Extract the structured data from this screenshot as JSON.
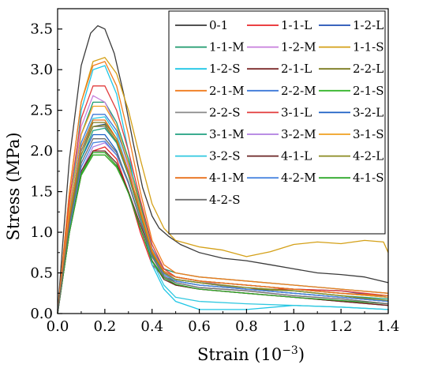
{
  "chart_data": {
    "type": "line",
    "xlabel": "Strain (10",
    "xlabel_sup": "−3",
    "xlabel_tail": ")",
    "ylabel": "Stress (MPa)",
    "xlim": [
      0.0,
      1.4
    ],
    "ylim": [
      0.0,
      3.75
    ],
    "x_ticks": [
      "0.0",
      "0.2",
      "0.4",
      "0.6",
      "0.8",
      "1.0",
      "1.2",
      "1.4"
    ],
    "y_ticks": [
      "0.0",
      "0.5",
      "1.0",
      "1.5",
      "2.0",
      "2.5",
      "3.0",
      "3.5"
    ],
    "grid": false,
    "legend_position": "top-right",
    "legend_columns": 3,
    "series": [
      {
        "name": "0-1",
        "color": "#3a3a3a",
        "x": [
          0,
          0.02,
          0.05,
          0.1,
          0.14,
          0.17,
          0.2,
          0.24,
          0.28,
          0.32,
          0.36,
          0.4,
          0.43,
          0.47,
          0.52,
          0.6,
          0.7,
          0.8,
          0.9,
          1.0,
          1.1,
          1.2,
          1.3,
          1.4
        ],
        "y": [
          0,
          0.8,
          1.9,
          3.05,
          3.45,
          3.54,
          3.5,
          3.2,
          2.7,
          2.1,
          1.55,
          1.2,
          1.05,
          0.95,
          0.85,
          0.75,
          0.68,
          0.65,
          0.6,
          0.55,
          0.5,
          0.48,
          0.45,
          0.38
        ]
      },
      {
        "name": "1-1-L",
        "color": "#e8262a",
        "x": [
          0,
          0.05,
          0.1,
          0.15,
          0.2,
          0.25,
          0.3,
          0.35,
          0.4,
          0.45,
          0.5,
          0.6,
          0.8,
          1.0,
          1.2,
          1.4
        ],
        "y": [
          0,
          1.0,
          1.7,
          2.0,
          2.05,
          1.9,
          1.5,
          1.0,
          0.6,
          0.45,
          0.4,
          0.35,
          0.3,
          0.3,
          0.25,
          0.2
        ]
      },
      {
        "name": "1-2-L",
        "color": "#1f4fb4",
        "x": [
          0,
          0.05,
          0.1,
          0.15,
          0.2,
          0.25,
          0.3,
          0.35,
          0.4,
          0.45,
          0.5,
          0.6,
          0.8,
          1.0,
          1.2,
          1.4
        ],
        "y": [
          0,
          1.2,
          2.0,
          2.3,
          2.33,
          2.1,
          1.7,
          1.2,
          0.7,
          0.5,
          0.45,
          0.4,
          0.35,
          0.3,
          0.28,
          0.2
        ]
      },
      {
        "name": "1-1-M",
        "color": "#1e9a6e",
        "x": [
          0,
          0.05,
          0.1,
          0.15,
          0.2,
          0.25,
          0.3,
          0.35,
          0.4,
          0.45,
          0.5,
          0.6,
          0.8,
          1.0,
          1.2,
          1.4
        ],
        "y": [
          0,
          1.3,
          2.2,
          2.6,
          2.6,
          2.35,
          1.9,
          1.35,
          0.8,
          0.55,
          0.5,
          0.45,
          0.4,
          0.35,
          0.3,
          0.25
        ]
      },
      {
        "name": "1-2-M",
        "color": "#c77fdc",
        "x": [
          0,
          0.05,
          0.1,
          0.15,
          0.2,
          0.25,
          0.3,
          0.35,
          0.4,
          0.45,
          0.5,
          0.6,
          0.8,
          1.0,
          1.2,
          1.4
        ],
        "y": [
          0,
          1.3,
          2.3,
          2.68,
          2.6,
          2.3,
          1.8,
          1.2,
          0.7,
          0.5,
          0.45,
          0.4,
          0.3,
          0.25,
          0.2,
          0.15
        ]
      },
      {
        "name": "1-1-S",
        "color": "#d4a017",
        "x": [
          0,
          0.05,
          0.1,
          0.15,
          0.2,
          0.25,
          0.3,
          0.35,
          0.4,
          0.45,
          0.5,
          0.6,
          0.7,
          0.8,
          0.9,
          1.0,
          1.1,
          1.2,
          1.3,
          1.38,
          1.4
        ],
        "y": [
          0,
          1.5,
          2.6,
          3.1,
          3.15,
          2.95,
          2.5,
          1.9,
          1.35,
          1.05,
          0.9,
          0.82,
          0.78,
          0.7,
          0.76,
          0.85,
          0.88,
          0.86,
          0.9,
          0.88,
          0.75
        ]
      },
      {
        "name": "1-2-S",
        "color": "#1ec6e6",
        "x": [
          0,
          0.05,
          0.1,
          0.15,
          0.2,
          0.25,
          0.3,
          0.35,
          0.4,
          0.45,
          0.5,
          0.6,
          0.8,
          1.0,
          1.2,
          1.4
        ],
        "y": [
          0,
          1.2,
          2.5,
          3.0,
          3.05,
          2.7,
          2.0,
          1.2,
          0.6,
          0.3,
          0.15,
          0.05,
          0.05,
          0.1,
          0.08,
          0.05
        ]
      },
      {
        "name": "2-1-L",
        "color": "#7b2a2a",
        "x": [
          0,
          0.05,
          0.1,
          0.15,
          0.2,
          0.25,
          0.3,
          0.35,
          0.4,
          0.45,
          0.5,
          0.6,
          0.8,
          1.0,
          1.2,
          1.4
        ],
        "y": [
          0,
          1.0,
          1.7,
          1.95,
          1.95,
          1.8,
          1.5,
          1.1,
          0.7,
          0.45,
          0.35,
          0.3,
          0.25,
          0.2,
          0.15,
          0.1
        ]
      },
      {
        "name": "2-2-L",
        "color": "#7a7a1e",
        "x": [
          0,
          0.05,
          0.1,
          0.15,
          0.2,
          0.25,
          0.3,
          0.35,
          0.4,
          0.45,
          0.5,
          0.6,
          0.8,
          1.0,
          1.2,
          1.4
        ],
        "y": [
          0,
          1.2,
          2.0,
          2.35,
          2.35,
          2.15,
          1.75,
          1.25,
          0.75,
          0.5,
          0.42,
          0.38,
          0.3,
          0.28,
          0.22,
          0.15
        ]
      },
      {
        "name": "2-1-M",
        "color": "#f07c1e",
        "x": [
          0,
          0.05,
          0.1,
          0.15,
          0.2,
          0.25,
          0.3,
          0.35,
          0.4,
          0.45,
          0.5,
          0.6,
          0.8,
          1.0,
          1.2,
          1.4
        ],
        "y": [
          0,
          1.5,
          2.6,
          3.05,
          3.1,
          2.8,
          2.2,
          1.5,
          0.9,
          0.6,
          0.5,
          0.45,
          0.4,
          0.35,
          0.3,
          0.25
        ]
      },
      {
        "name": "2-2-M",
        "color": "#3c78d8",
        "x": [
          0,
          0.05,
          0.1,
          0.15,
          0.2,
          0.25,
          0.3,
          0.35,
          0.4,
          0.45,
          0.5,
          0.6,
          0.8,
          1.0,
          1.2,
          1.4
        ],
        "y": [
          0,
          1.2,
          2.1,
          2.45,
          2.45,
          2.25,
          1.85,
          1.3,
          0.8,
          0.55,
          0.45,
          0.4,
          0.35,
          0.3,
          0.25,
          0.2
        ]
      },
      {
        "name": "2-1-S",
        "color": "#36b62c",
        "x": [
          0,
          0.05,
          0.1,
          0.15,
          0.2,
          0.25,
          0.3,
          0.35,
          0.4,
          0.45,
          0.5,
          0.6,
          0.8,
          1.0,
          1.2,
          1.4
        ],
        "y": [
          0,
          1.0,
          1.7,
          1.95,
          1.95,
          1.8,
          1.5,
          1.05,
          0.65,
          0.45,
          0.4,
          0.35,
          0.3,
          0.25,
          0.2,
          0.15
        ]
      },
      {
        "name": "2-2-S",
        "color": "#8a8a8a",
        "x": [
          0,
          0.05,
          0.1,
          0.15,
          0.2,
          0.25,
          0.3,
          0.35,
          0.4,
          0.45,
          0.5,
          0.6,
          0.8,
          1.0,
          1.2,
          1.4
        ],
        "y": [
          0,
          1.2,
          2.0,
          2.3,
          2.3,
          2.1,
          1.7,
          1.2,
          0.75,
          0.5,
          0.42,
          0.38,
          0.3,
          0.25,
          0.2,
          0.15
        ]
      },
      {
        "name": "3-1-L",
        "color": "#e23c3c",
        "x": [
          0,
          0.05,
          0.1,
          0.15,
          0.2,
          0.25,
          0.3,
          0.35,
          0.4,
          0.45,
          0.5,
          0.6,
          0.8,
          1.0,
          1.2,
          1.4
        ],
        "y": [
          0,
          1.4,
          2.4,
          2.8,
          2.8,
          2.5,
          2.0,
          1.4,
          0.85,
          0.55,
          0.45,
          0.4,
          0.35,
          0.3,
          0.28,
          0.22
        ]
      },
      {
        "name": "3-2-L",
        "color": "#1a5fc4",
        "x": [
          0,
          0.05,
          0.1,
          0.15,
          0.2,
          0.25,
          0.3,
          0.35,
          0.4,
          0.45,
          0.5,
          0.6,
          0.8,
          1.0,
          1.2,
          1.4
        ],
        "y": [
          0,
          1.1,
          1.9,
          2.2,
          2.2,
          2.0,
          1.6,
          1.15,
          0.7,
          0.48,
          0.4,
          0.35,
          0.3,
          0.25,
          0.2,
          0.15
        ]
      },
      {
        "name": "3-1-M",
        "color": "#20a080",
        "x": [
          0,
          0.05,
          0.1,
          0.15,
          0.2,
          0.25,
          0.3,
          0.35,
          0.4,
          0.45,
          0.5,
          0.6,
          0.8,
          1.0,
          1.2,
          1.4
        ],
        "y": [
          0,
          1.1,
          1.9,
          2.25,
          2.28,
          2.1,
          1.7,
          1.2,
          0.72,
          0.5,
          0.42,
          0.38,
          0.32,
          0.28,
          0.22,
          0.18
        ]
      },
      {
        "name": "3-2-M",
        "color": "#b07ee0",
        "x": [
          0,
          0.05,
          0.1,
          0.15,
          0.2,
          0.25,
          0.3,
          0.35,
          0.4,
          0.45,
          0.5,
          0.6,
          0.8,
          1.0,
          1.2,
          1.4
        ],
        "y": [
          0,
          1.0,
          1.75,
          2.05,
          2.1,
          1.95,
          1.6,
          1.15,
          0.7,
          0.45,
          0.38,
          0.32,
          0.28,
          0.22,
          0.18,
          0.12
        ]
      },
      {
        "name": "3-1-S",
        "color": "#f0a020",
        "x": [
          0,
          0.05,
          0.1,
          0.15,
          0.2,
          0.25,
          0.3,
          0.35,
          0.4,
          0.45,
          0.5,
          0.6,
          0.8,
          1.0,
          1.2,
          1.4
        ],
        "y": [
          0,
          1.3,
          2.2,
          2.55,
          2.55,
          2.3,
          1.85,
          1.3,
          0.78,
          0.52,
          0.45,
          0.4,
          0.35,
          0.3,
          0.25,
          0.2
        ]
      },
      {
        "name": "3-2-S",
        "color": "#30c8e0",
        "x": [
          0,
          0.05,
          0.1,
          0.15,
          0.2,
          0.25,
          0.3,
          0.35,
          0.4,
          0.45,
          0.5,
          0.6,
          0.8,
          1.0,
          1.2,
          1.4
        ],
        "y": [
          0,
          1.2,
          2.05,
          2.4,
          2.42,
          2.2,
          1.75,
          1.2,
          0.65,
          0.35,
          0.2,
          0.15,
          0.12,
          0.1,
          0.08,
          0.05
        ]
      },
      {
        "name": "4-1-L",
        "color": "#6b2424",
        "x": [
          0,
          0.05,
          0.1,
          0.15,
          0.2,
          0.25,
          0.3,
          0.35,
          0.4,
          0.45,
          0.5,
          0.6,
          0.8,
          1.0,
          1.2,
          1.4
        ],
        "y": [
          0,
          1.0,
          1.75,
          2.0,
          2.0,
          1.85,
          1.5,
          1.05,
          0.65,
          0.42,
          0.35,
          0.3,
          0.25,
          0.2,
          0.15,
          0.1
        ]
      },
      {
        "name": "4-2-L",
        "color": "#8a8a20",
        "x": [
          0,
          0.05,
          0.1,
          0.15,
          0.2,
          0.25,
          0.3,
          0.35,
          0.4,
          0.45,
          0.5,
          0.6,
          0.8,
          1.0,
          1.2,
          1.4
        ],
        "y": [
          0,
          1.15,
          1.95,
          2.3,
          2.32,
          2.12,
          1.72,
          1.22,
          0.74,
          0.5,
          0.42,
          0.38,
          0.32,
          0.28,
          0.22,
          0.16
        ]
      },
      {
        "name": "4-1-M",
        "color": "#e8701a",
        "x": [
          0,
          0.05,
          0.1,
          0.15,
          0.2,
          0.25,
          0.3,
          0.35,
          0.4,
          0.45,
          0.5,
          0.6,
          0.8,
          1.0,
          1.2,
          1.4
        ],
        "y": [
          0,
          1.2,
          2.05,
          2.38,
          2.38,
          2.15,
          1.75,
          1.25,
          0.76,
          0.52,
          0.45,
          0.4,
          0.35,
          0.3,
          0.25,
          0.22
        ]
      },
      {
        "name": "4-2-M",
        "color": "#4a86e0",
        "x": [
          0,
          0.05,
          0.1,
          0.15,
          0.2,
          0.25,
          0.3,
          0.35,
          0.4,
          0.45,
          0.5,
          0.6,
          0.8,
          1.0,
          1.2,
          1.4
        ],
        "y": [
          0,
          1.05,
          1.8,
          2.1,
          2.12,
          1.95,
          1.6,
          1.15,
          0.7,
          0.48,
          0.4,
          0.35,
          0.3,
          0.25,
          0.2,
          0.15
        ]
      },
      {
        "name": "4-1-S",
        "color": "#2ea82a",
        "x": [
          0,
          0.05,
          0.1,
          0.15,
          0.2,
          0.25,
          0.3,
          0.35,
          0.4,
          0.45,
          0.5,
          0.6,
          0.8,
          1.0,
          1.2,
          1.4
        ],
        "y": [
          0,
          1.0,
          1.72,
          1.98,
          1.98,
          1.82,
          1.48,
          1.05,
          0.64,
          0.44,
          0.36,
          0.3,
          0.25,
          0.2,
          0.16,
          0.12
        ]
      },
      {
        "name": "4-2-S",
        "color": "#6e6e6e",
        "x": [
          0,
          0.05,
          0.1,
          0.15,
          0.2,
          0.25,
          0.3,
          0.35,
          0.4,
          0.45,
          0.5,
          0.6,
          0.8,
          1.0,
          1.2,
          1.4
        ],
        "y": [
          0,
          1.1,
          1.85,
          2.15,
          2.15,
          1.98,
          1.62,
          1.15,
          0.7,
          0.46,
          0.38,
          0.32,
          0.28,
          0.22,
          0.18,
          0.12
        ]
      }
    ]
  }
}
